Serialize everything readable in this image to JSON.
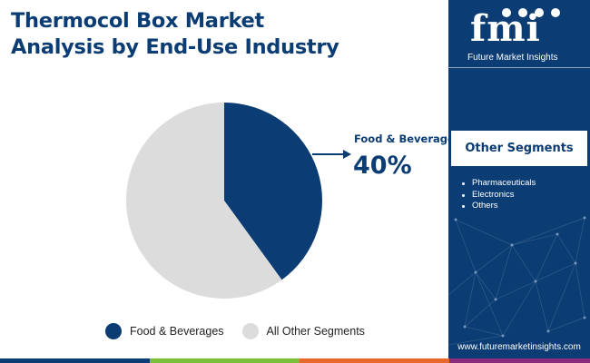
{
  "title_lines": [
    "Thermocol Box Market",
    "Analysis by End-Use Industry"
  ],
  "chart_data": {
    "type": "pie",
    "title": "Thermocol Box Market Analysis by End-Use Industry",
    "series": [
      {
        "name": "Food & Beverages",
        "value": 40,
        "color": "#0b3c73"
      },
      {
        "name": "All Other Segments",
        "value": 60,
        "color": "#dcdcdc"
      }
    ],
    "callout": {
      "label": "Food & Beverages",
      "value": "40%"
    },
    "legend_position": "bottom"
  },
  "legend": [
    {
      "label": "Food & Beverages",
      "color": "#0b3c73"
    },
    {
      "label": "All Other Segments",
      "color": "#dcdcdc"
    }
  ],
  "sidebar": {
    "logo_text": "fmi",
    "logo_caption": "Future Market Insights",
    "segments_header": "Other Segments",
    "segments": [
      "Pharmaceuticals",
      "Electronics",
      "Others"
    ],
    "url": "www.futuremarketinsights.com",
    "background_color": "#0b3c73"
  },
  "bottom_strip_colors": [
    "#0b3c73",
    "#7cbf3b",
    "#e8672a",
    "#8c2c7f"
  ]
}
